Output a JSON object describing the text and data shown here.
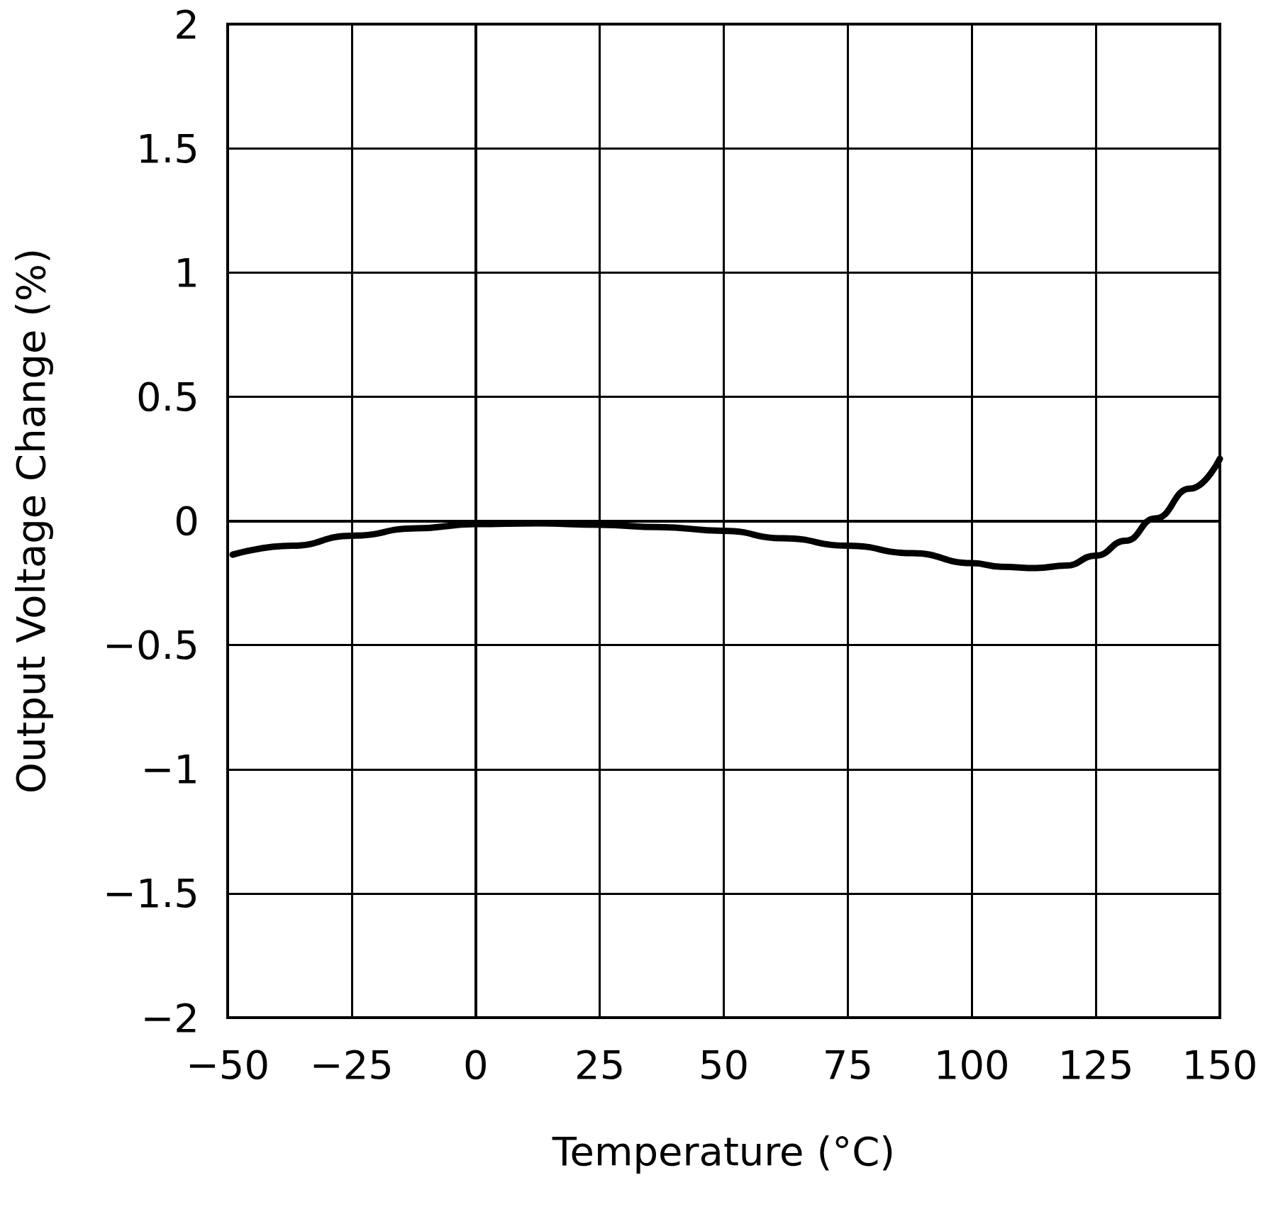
{
  "chart_data": {
    "type": "line",
    "xlabel": "Temperature (°C)",
    "ylabel": "Output Voltage Change (%)",
    "series": [
      {
        "color": "#000000",
        "x": [
          -49,
          -37,
          -25,
          -12,
          0,
          12,
          25,
          37,
          50,
          62,
          75,
          88,
          100,
          106,
          113,
          119,
          125,
          131,
          137,
          144,
          150
        ],
        "values": [
          -0.136,
          -0.1,
          -0.06,
          -0.03,
          -0.013,
          -0.01,
          -0.016,
          -0.025,
          -0.04,
          -0.07,
          -0.1,
          -0.13,
          -0.17,
          -0.185,
          -0.19,
          -0.18,
          -0.14,
          -0.08,
          0.01,
          0.13,
          0.25
        ]
      }
    ],
    "xlim": [
      -50,
      150
    ],
    "xticks": [
      -50,
      -25,
      0,
      25,
      50,
      75,
      100,
      125,
      150
    ],
    "ylim": [
      -2,
      2
    ],
    "yticks": [
      -2,
      -1.5,
      -1,
      -0.5,
      0,
      0.5,
      1,
      1.5,
      2
    ],
    "grid": true,
    "marker": "none",
    "line_style": "solid"
  }
}
